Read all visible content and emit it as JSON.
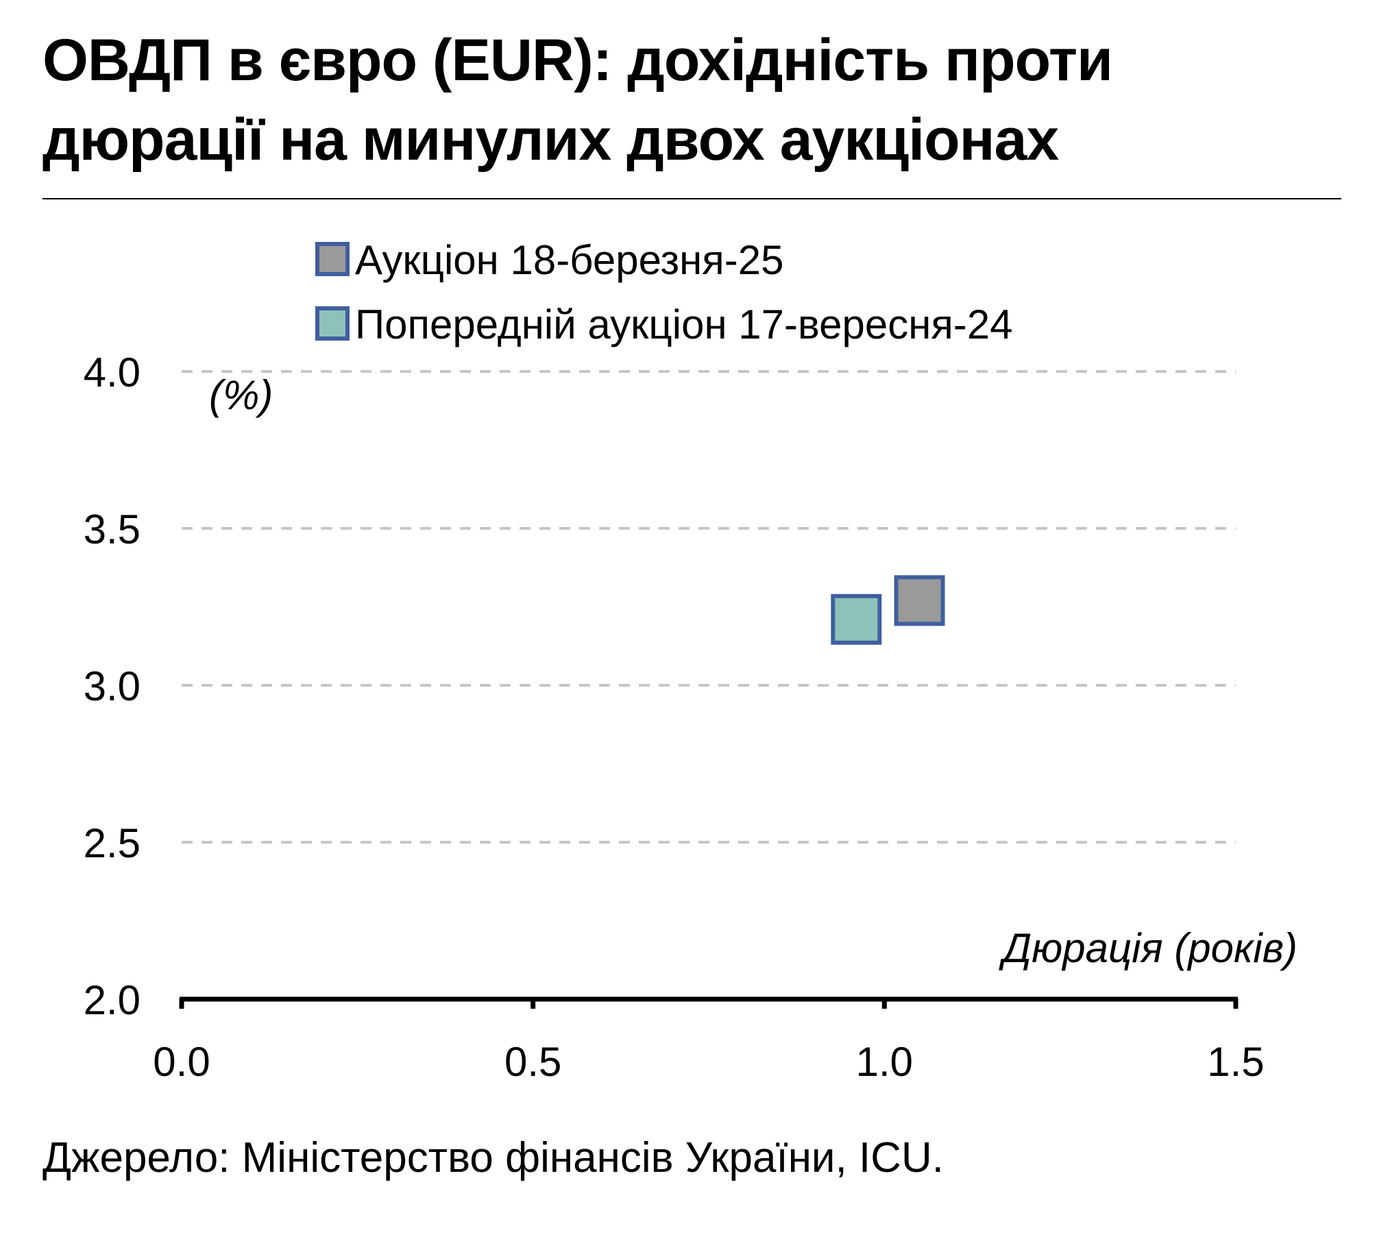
{
  "title": "ОВДП в євро (EUR): дохідність проти дюрації на минулих двох аукціонах",
  "source": "Джерело: Міністерство фінансів України, ICU.",
  "chart_data": {
    "type": "scatter",
    "title": "ОВДП в євро (EUR): дохідність проти дюрації на минулих двох аукціонах",
    "xlabel": "Дюрація (років)",
    "ylabel": "(%)",
    "xlim": [
      0.0,
      1.5
    ],
    "ylim": [
      2.0,
      4.0
    ],
    "x_ticks": [
      "0.0",
      "0.5",
      "1.0",
      "1.5"
    ],
    "y_ticks": [
      "2.0",
      "2.5",
      "3.0",
      "3.5",
      "4.0"
    ],
    "grid": "horizontal dashed",
    "legend_position": "top-center",
    "series": [
      {
        "name": "Аукціон 18-березня-25",
        "color": "#9a9a9a",
        "edge_color": "#3f5f9e",
        "points": [
          {
            "x": 1.05,
            "y": 3.27
          }
        ]
      },
      {
        "name": "Попередній аукціон 17-вересня-24",
        "color": "#8fc1bb",
        "edge_color": "#3f5f9e",
        "points": [
          {
            "x": 0.96,
            "y": 3.21
          }
        ]
      }
    ]
  }
}
